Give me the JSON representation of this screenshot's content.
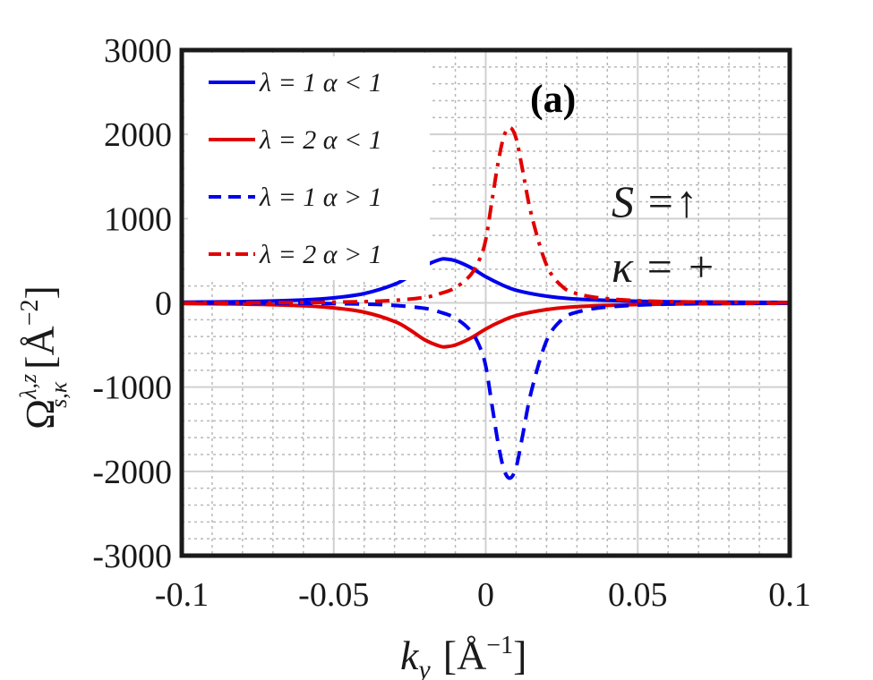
{
  "chart_data": {
    "type": "line",
    "panel_label": "(a)",
    "xlabel_main": "k",
    "xlabel_sub": "y",
    "xlabel_unit": "[Å",
    "xlabel_exp": "−1",
    "xlabel_close": "]",
    "ylabel_main": "Ω",
    "ylabel_sup": "λ,z",
    "ylabel_sub": "s,κ",
    "ylabel_unit": "[Å",
    "ylabel_exp": "−2",
    "ylabel_close": "]",
    "xlim": [
      -0.1,
      0.1
    ],
    "ylim": [
      -3000,
      3000
    ],
    "xticks": [
      -0.1,
      -0.05,
      0,
      0.05,
      0.1
    ],
    "xtick_labels": [
      "-0.1",
      "-0.05",
      "0",
      "0.05",
      "0.1"
    ],
    "yticks": [
      -3000,
      -2000,
      -1000,
      0,
      1000,
      2000,
      3000
    ],
    "ytick_labels": [
      "-3000",
      "-2000",
      "-1000",
      "0",
      "1000",
      "2000",
      "3000"
    ],
    "grid": true,
    "minor_grid": true,
    "legend_position": "top-left",
    "annotations": {
      "spin": "S =↑",
      "kappa": "κ = +"
    },
    "colors": {
      "blue": "#0000ee",
      "red": "#e00000",
      "axis": "#1a1a1a"
    },
    "series": [
      {
        "name": "λ = 1  α < 1",
        "color": "#0000ee",
        "dash": "solid",
        "x": [
          -0.1,
          -0.08,
          -0.06,
          -0.05,
          -0.04,
          -0.03,
          -0.025,
          -0.02,
          -0.015,
          -0.013,
          -0.01,
          -0.005,
          0,
          0.005,
          0.01,
          0.02,
          0.03,
          0.05,
          0.07,
          0.1
        ],
        "y": [
          8,
          15,
          35,
          60,
          110,
          220,
          320,
          440,
          515,
          520,
          500,
          420,
          310,
          220,
          150,
          80,
          45,
          20,
          10,
          5
        ]
      },
      {
        "name": "λ = 2  α < 1",
        "color": "#e00000",
        "dash": "solid",
        "x": [
          -0.1,
          -0.08,
          -0.06,
          -0.05,
          -0.04,
          -0.03,
          -0.025,
          -0.02,
          -0.015,
          -0.013,
          -0.01,
          -0.005,
          0,
          0.005,
          0.01,
          0.02,
          0.03,
          0.05,
          0.07,
          0.1
        ],
        "y": [
          -8,
          -15,
          -35,
          -60,
          -110,
          -220,
          -320,
          -440,
          -515,
          -520,
          -500,
          -420,
          -310,
          -220,
          -150,
          -80,
          -45,
          -20,
          -10,
          -5
        ]
      },
      {
        "name": "λ = 1  α > 1",
        "color": "#0000ee",
        "dash": "dashed",
        "x": [
          -0.1,
          -0.06,
          -0.04,
          -0.03,
          -0.02,
          -0.015,
          -0.01,
          -0.005,
          -0.002,
          0,
          0.002,
          0.004,
          0.006,
          0.008,
          0.01,
          0.012,
          0.015,
          0.02,
          0.025,
          0.03,
          0.04,
          0.06,
          0.1
        ],
        "y": [
          0,
          -5,
          -15,
          -30,
          -65,
          -110,
          -180,
          -330,
          -520,
          -750,
          -1200,
          -1650,
          -1980,
          -2080,
          -1950,
          -1600,
          -1050,
          -450,
          -200,
          -110,
          -50,
          -15,
          -3
        ]
      },
      {
        "name": "λ = 2  α > 1",
        "color": "#e00000",
        "dash": "dashdot",
        "x": [
          -0.1,
          -0.06,
          -0.04,
          -0.03,
          -0.02,
          -0.015,
          -0.01,
          -0.005,
          -0.002,
          0,
          0.002,
          0.004,
          0.006,
          0.008,
          0.01,
          0.012,
          0.015,
          0.02,
          0.025,
          0.03,
          0.04,
          0.06,
          0.1
        ],
        "y": [
          0,
          5,
          15,
          30,
          65,
          110,
          180,
          330,
          520,
          750,
          1200,
          1650,
          1980,
          2080,
          1950,
          1600,
          1050,
          450,
          200,
          110,
          50,
          15,
          3
        ]
      }
    ]
  }
}
